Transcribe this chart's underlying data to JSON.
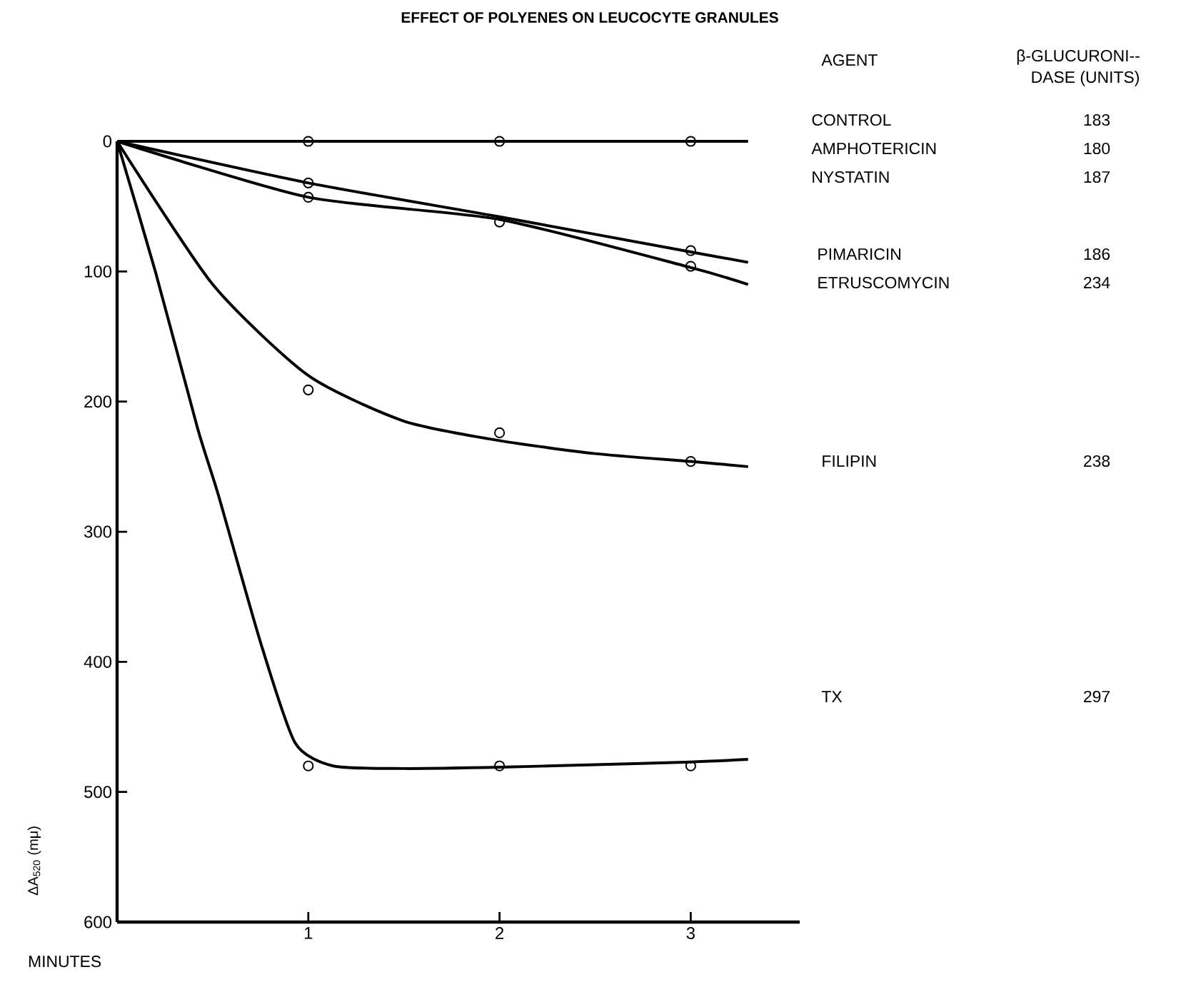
{
  "chart_data": {
    "type": "line",
    "title": "EFFECT OF POLYENES ON LEUCOCYTE GRANULES",
    "xlabel": "MINUTES",
    "ylabel": "ΔA$_{520}$ (mμ)",
    "xlim": [
      0,
      3.57
    ],
    "ylim": [
      600,
      0
    ],
    "xticks": [
      1,
      2,
      3
    ],
    "yticks": [
      0,
      100,
      200,
      300,
      400,
      500,
      600
    ],
    "series": [
      {
        "color": "#000000",
        "marker": "none",
        "x": [
          0,
          3.3
        ],
        "values": [
          0,
          0
        ]
      },
      {
        "color": "#000000",
        "marker": "none",
        "x": [
          0,
          1,
          2,
          3,
          3.3
        ],
        "values": [
          0,
          43,
          60,
          97,
          110
        ]
      },
      {
        "color": "#000000",
        "marker": "none",
        "x": [
          0,
          1,
          2,
          3,
          3.3
        ],
        "values": [
          0,
          32,
          58,
          85,
          93
        ]
      },
      {
        "color": "#000000",
        "marker": "none",
        "x": [
          0,
          0.5,
          1,
          1.5,
          2,
          2.5,
          3,
          3.3
        ],
        "values": [
          0,
          110,
          180,
          215,
          230,
          240,
          246,
          250
        ]
      },
      {
        "color": "#000000",
        "marker": "none",
        "x": [
          0,
          0.2,
          0.42,
          0.53,
          0.75,
          0.93,
          1.13,
          1.5,
          2,
          2.5,
          3,
          3.3
        ],
        "values": [
          0,
          100,
          220,
          272,
          385,
          462,
          480,
          482,
          481,
          479,
          477,
          475
        ]
      },
      {
        "type": "scatter",
        "color": "#000000",
        "marker": "circle",
        "x": [
          1,
          2,
          3,
          1,
          1,
          2,
          3,
          3,
          1,
          2,
          3,
          1,
          2,
          3
        ],
        "values": [
          0,
          0,
          0,
          32,
          43,
          62,
          84,
          96,
          191,
          224,
          246,
          480,
          480,
          480
        ]
      }
    ],
    "annotations": [
      "AGENT",
      "β-GLUCURONI--",
      "DASE (UNITS)",
      "CONTROL",
      "183",
      "AMPHOTERICIN",
      "180",
      "NYSTATIN",
      "187",
      "PIMARICIN",
      "186",
      "ETRUSCOMYCIN",
      "234",
      "FILIPIN",
      "238",
      "TX",
      "297"
    ]
  }
}
